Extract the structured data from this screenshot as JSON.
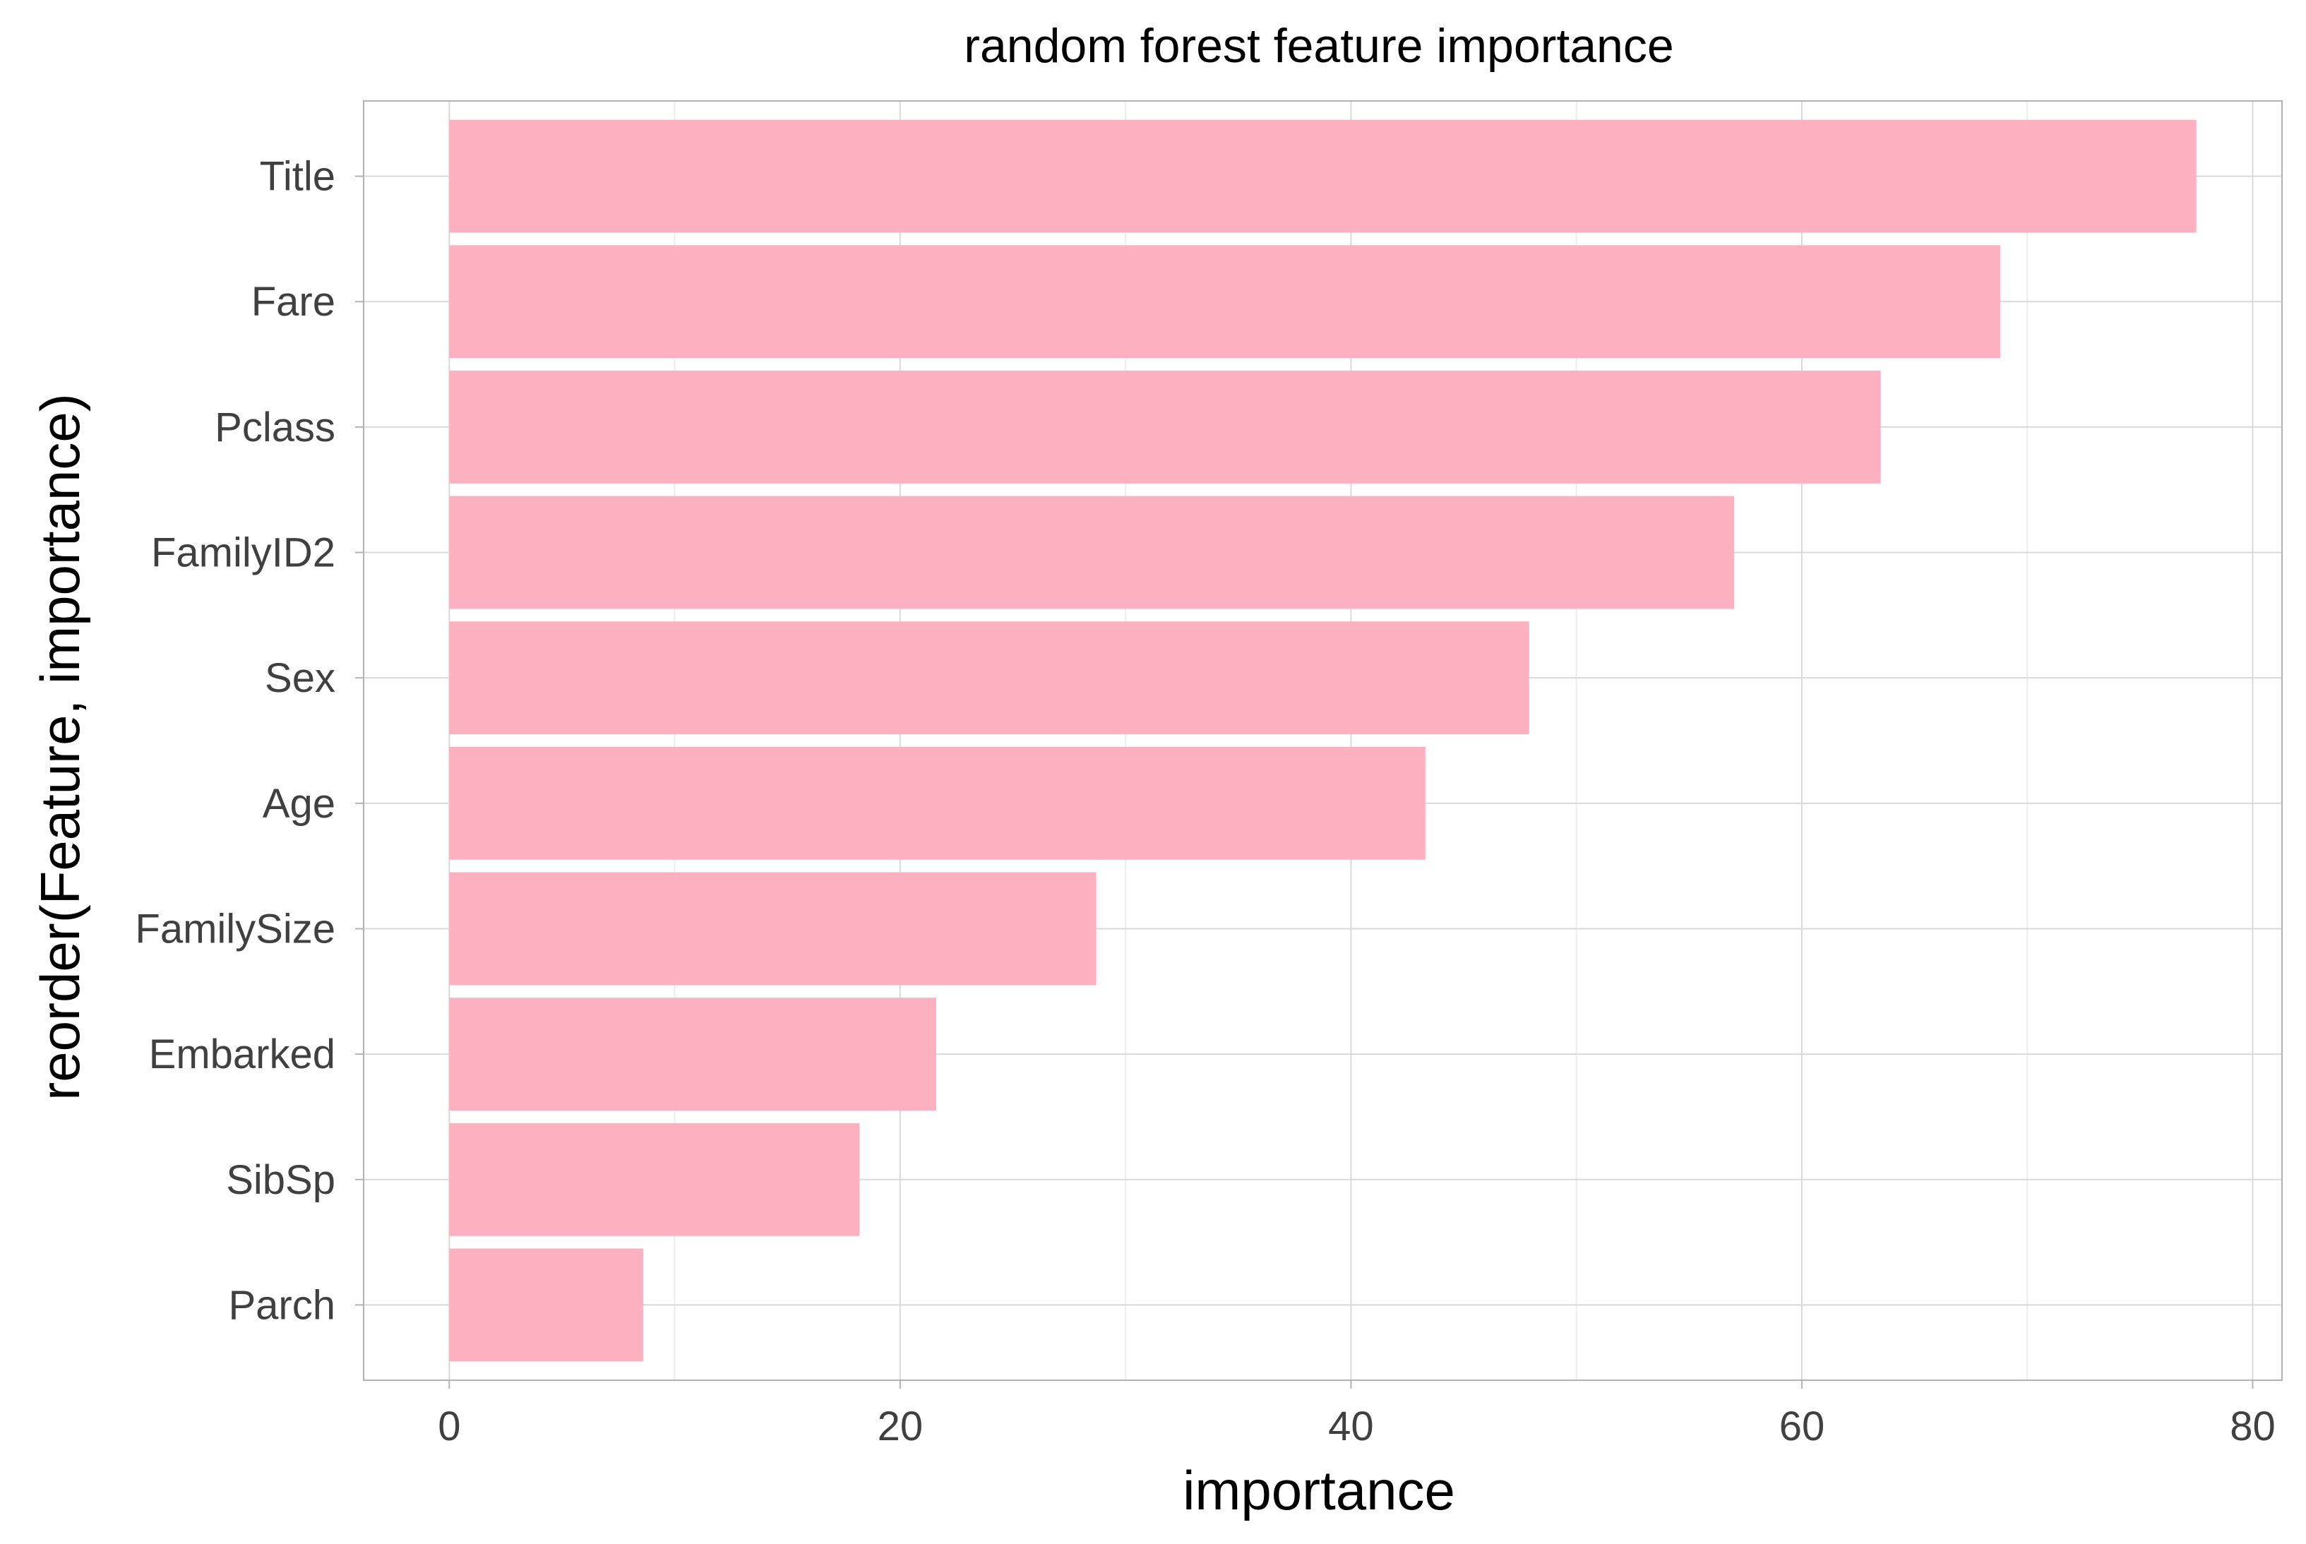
{
  "chart_data": {
    "type": "bar",
    "orientation": "horizontal",
    "title": "random forest feature importance",
    "xlabel": "importance",
    "ylabel": "reorder(Feature, importance)",
    "categories": [
      "Title",
      "Fare",
      "Pclass",
      "FamilyID2",
      "Sex",
      "Age",
      "FamilySize",
      "Embarked",
      "SibSp",
      "Parch"
    ],
    "values": [
      77.5,
      68.8,
      63.5,
      57.0,
      47.9,
      43.3,
      28.7,
      21.6,
      18.2,
      8.6
    ],
    "xlim": [
      -3.8,
      81.3
    ],
    "xticks": [
      0,
      20,
      40,
      60,
      80
    ],
    "grid": true,
    "colors": {
      "bar": "#fdb0c0",
      "grid_major": "#d9d9d9",
      "grid_minor": "#ededed",
      "panel_border": "#b3b3b3",
      "tick_text": "#404040"
    }
  }
}
